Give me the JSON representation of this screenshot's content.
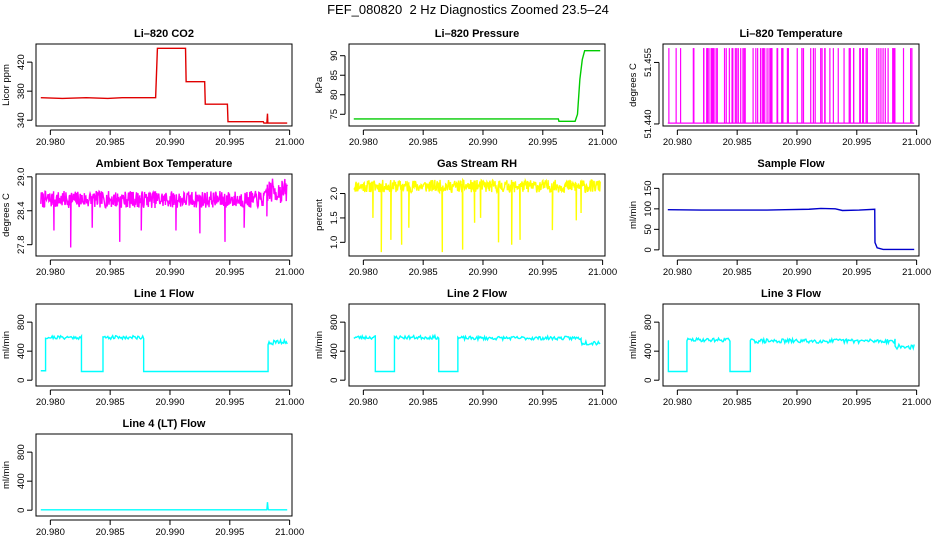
{
  "page": {
    "title": "FEF_080820  2 Hz Diagnostics Zoomed 23.5–24"
  },
  "chart_data": [
    {
      "type": "line",
      "title": "Li–820 CO2",
      "ylabel": "Licor ppm",
      "color": "#e00000",
      "xticks": [
        "20.980",
        "20.985",
        "20.990",
        "20.995",
        "21.000"
      ],
      "yticks": [
        "340",
        "380",
        "420"
      ],
      "xlim": [
        20.9788,
        21.0002
      ],
      "ylim": [
        332,
        445
      ],
      "series": [
        {
          "x": [
            20.9792,
            20.981,
            20.983,
            20.9848,
            20.986,
            20.9878,
            20.9888,
            20.98895,
            20.9895,
            20.9905,
            20.9913,
            20.99135,
            20.992,
            20.9929,
            20.99295,
            20.994,
            20.9948,
            20.99485,
            20.996,
            20.9978,
            20.99785,
            20.9981,
            20.99815,
            20.99818,
            20.9982,
            20.999,
            20.9998
          ],
          "y": [
            371,
            370,
            371,
            370,
            371,
            371,
            371,
            439,
            439,
            439,
            439,
            393,
            393,
            393,
            362,
            362,
            362,
            338,
            338,
            338,
            336,
            336,
            349,
            336,
            336,
            336,
            336
          ]
        }
      ]
    },
    {
      "type": "line",
      "title": "Li–820 Pressure",
      "ylabel": "kPa",
      "color": "#00cc00",
      "xticks": [
        "20.980",
        "20.985",
        "20.990",
        "20.995",
        "21.000"
      ],
      "yticks": [
        "75",
        "80",
        "85",
        "90"
      ],
      "xlim": [
        20.9788,
        21.0002
      ],
      "ylim": [
        72,
        93
      ],
      "series": [
        {
          "x": [
            20.9792,
            20.985,
            20.99,
            20.995,
            20.9963,
            20.99635,
            20.9977,
            20.9979,
            20.9981,
            20.9983,
            20.9985,
            20.9998
          ],
          "y": [
            73.8,
            73.8,
            73.8,
            73.8,
            73.8,
            73.2,
            73.2,
            75,
            84,
            89,
            91.3,
            91.3
          ]
        }
      ]
    },
    {
      "type": "line",
      "title": "Li–820 Temperature",
      "ylabel": "degrees C",
      "color": "#ff00ff",
      "xticks": [
        "20.980",
        "20.985",
        "20.990",
        "20.995",
        "21.000"
      ],
      "yticks": [
        "51.440",
        "51.455"
      ],
      "xlim": [
        20.9788,
        21.0002
      ],
      "ylim": [
        51.4395,
        51.4595
      ],
      "pattern": "spikes",
      "base": 51.4402,
      "peak": 51.4585,
      "n": 90,
      "seed": 3
    },
    {
      "type": "line",
      "title": "Ambient Box Temperature",
      "ylabel": "degrees C",
      "color": "#ff00ff",
      "xticks": [
        "20.980",
        "20.985",
        "20.990",
        "20.995",
        "21.000"
      ],
      "yticks": [
        "27.8",
        "28.4",
        "29.0"
      ],
      "xlim": [
        20.9788,
        21.0002
      ],
      "ylim": [
        27.6,
        29.05
      ],
      "pattern": "noise",
      "center": 28.6,
      "amp": 0.15,
      "n": 520,
      "seed": 7,
      "dips": [
        {
          "x": 20.9803,
          "y": 28.05
        },
        {
          "x": 20.9817,
          "y": 27.75
        },
        {
          "x": 20.9835,
          "y": 28.1
        },
        {
          "x": 20.9858,
          "y": 27.85
        },
        {
          "x": 20.9876,
          "y": 28.05
        },
        {
          "x": 20.9905,
          "y": 28.05
        },
        {
          "x": 20.9925,
          "y": 28.0
        },
        {
          "x": 20.9946,
          "y": 27.85
        },
        {
          "x": 20.9962,
          "y": 28.1
        },
        {
          "x": 20.9981,
          "y": 28.3
        }
      ],
      "tail": {
        "from": 20.998,
        "center": 28.75,
        "amp": 0.22
      }
    },
    {
      "type": "line",
      "title": "Gas Stream RH",
      "ylabel": "percent",
      "color": "#ffff00",
      "xticks": [
        "20.980",
        "20.985",
        "20.990",
        "20.995",
        "21.000"
      ],
      "yticks": [
        "1.0",
        "1.5",
        "2.0"
      ],
      "xlim": [
        20.9788,
        21.0002
      ],
      "ylim": [
        0.72,
        2.4
      ],
      "pattern": "noise",
      "center": 2.15,
      "amp": 0.13,
      "n": 520,
      "seed": 11,
      "dips": [
        {
          "x": 20.9808,
          "y": 1.5
        },
        {
          "x": 20.9815,
          "y": 0.8
        },
        {
          "x": 20.9823,
          "y": 1.05
        },
        {
          "x": 20.9832,
          "y": 0.95
        },
        {
          "x": 20.9838,
          "y": 1.3
        },
        {
          "x": 20.9866,
          "y": 0.8
        },
        {
          "x": 20.9883,
          "y": 0.85
        },
        {
          "x": 20.9893,
          "y": 1.4
        },
        {
          "x": 20.9898,
          "y": 1.5
        },
        {
          "x": 20.9913,
          "y": 1.0
        },
        {
          "x": 20.9924,
          "y": 0.95
        },
        {
          "x": 20.9931,
          "y": 1.05
        },
        {
          "x": 20.9958,
          "y": 1.25
        },
        {
          "x": 20.9982,
          "y": 1.6
        },
        {
          "x": 20.9978,
          "y": 1.45
        }
      ]
    },
    {
      "type": "line",
      "title": "Sample Flow",
      "ylabel": "ml/min",
      "color": "#0000cc",
      "xticks": [
        "20.980",
        "20.985",
        "20.990",
        "20.995",
        "21.000"
      ],
      "yticks": [
        "0",
        "50",
        "100",
        "150"
      ],
      "xlim": [
        20.9788,
        21.0002
      ],
      "ylim": [
        -15,
        185
      ],
      "series": [
        {
          "x": [
            20.9792,
            20.982,
            20.985,
            20.9875,
            20.989,
            20.991,
            20.992,
            20.9932,
            20.9938,
            20.9952,
            20.9965,
            20.99652,
            20.9967,
            20.9972,
            20.9998
          ],
          "y": [
            98,
            97,
            97,
            97,
            98,
            99,
            101,
            100,
            96,
            97,
            99,
            18,
            5,
            1,
            1
          ]
        }
      ]
    },
    {
      "type": "line",
      "title": "Line 1 Flow",
      "ylabel": "ml/min",
      "color": "#00ffff",
      "xticks": [
        "20.980",
        "20.985",
        "20.990",
        "20.995",
        "21.000"
      ],
      "yticks": [
        "0",
        "400",
        "800"
      ],
      "xlim": [
        20.9788,
        21.0002
      ],
      "ylim": [
        -80,
        1050
      ],
      "pattern": "steps",
      "segments": [
        {
          "x0": 20.9792,
          "x1": 20.9796,
          "v": 130
        },
        {
          "x0": 20.9796,
          "x1": 20.9826,
          "v": 590,
          "amp": 25
        },
        {
          "x0": 20.9826,
          "x1": 20.9844,
          "v": 120
        },
        {
          "x0": 20.9844,
          "x1": 20.9878,
          "v": 590,
          "amp": 25
        },
        {
          "x0": 20.9878,
          "x1": 20.9982,
          "v": 120
        },
        {
          "x0": 20.9982,
          "x1": 20.9998,
          "v": 520,
          "amp": 35
        }
      ],
      "seed": 21
    },
    {
      "type": "line",
      "title": "Line 2 Flow",
      "ylabel": "ml/min",
      "color": "#00ffff",
      "xticks": [
        "20.980",
        "20.985",
        "20.990",
        "20.995",
        "21.000"
      ],
      "yticks": [
        "0",
        "400",
        "800"
      ],
      "xlim": [
        20.9788,
        21.0002
      ],
      "ylim": [
        -80,
        1050
      ],
      "pattern": "steps",
      "segments": [
        {
          "x0": 20.9792,
          "x1": 20.981,
          "v": 590,
          "amp": 25
        },
        {
          "x0": 20.981,
          "x1": 20.9826,
          "v": 120
        },
        {
          "x0": 20.9826,
          "x1": 20.9863,
          "v": 590,
          "amp": 25
        },
        {
          "x0": 20.9863,
          "x1": 20.9879,
          "v": 120
        },
        {
          "x0": 20.9879,
          "x1": 20.9982,
          "v": 580,
          "amp": 25
        },
        {
          "x0": 20.9982,
          "x1": 20.9998,
          "v": 520,
          "amp": 35
        }
      ],
      "seed": 23
    },
    {
      "type": "line",
      "title": "Line 3 Flow",
      "ylabel": "ml/min",
      "color": "#00ffff",
      "xticks": [
        "20.980",
        "20.985",
        "20.990",
        "20.995",
        "21.000"
      ],
      "yticks": [
        "0",
        "400",
        "800"
      ],
      "xlim": [
        20.9788,
        21.0002
      ],
      "ylim": [
        -80,
        1050
      ],
      "pattern": "steps",
      "segments": [
        {
          "x0": 20.9792,
          "x1": 20.97925,
          "v": 540
        },
        {
          "x0": 20.97925,
          "x1": 20.9808,
          "v": 120
        },
        {
          "x0": 20.9808,
          "x1": 20.9844,
          "v": 555,
          "amp": 25
        },
        {
          "x0": 20.9844,
          "x1": 20.9861,
          "v": 120
        },
        {
          "x0": 20.9861,
          "x1": 20.9982,
          "v": 540,
          "amp": 30
        },
        {
          "x0": 20.9982,
          "x1": 20.9998,
          "v": 460,
          "amp": 35
        }
      ],
      "seed": 29
    },
    {
      "type": "line",
      "title": "Line 4 (LT) Flow",
      "ylabel": "ml/min",
      "color": "#00ffff",
      "xticks": [
        "20.980",
        "20.985",
        "20.990",
        "20.995",
        "21.000"
      ],
      "yticks": [
        "0",
        "400",
        "800"
      ],
      "xlim": [
        20.9788,
        21.0002
      ],
      "ylim": [
        -80,
        1050
      ],
      "series": [
        {
          "x": [
            20.9792,
            20.985,
            20.99,
            20.9981,
            20.99815,
            20.9982,
            20.99825,
            20.9998
          ],
          "y": [
            5,
            5,
            5,
            5,
            110,
            20,
            5,
            5
          ]
        }
      ]
    }
  ]
}
